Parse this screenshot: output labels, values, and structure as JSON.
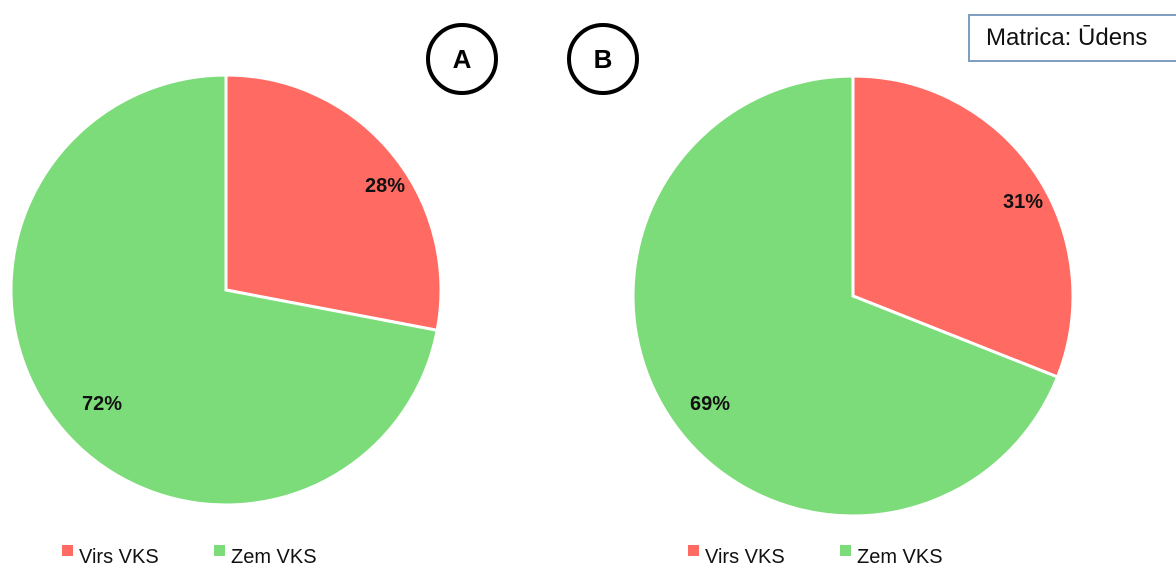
{
  "matrix_label": "Matrica: Ūdens",
  "colors": {
    "above": "#ff6b63",
    "below": "#7ddc7a",
    "box_border": "#7f9fbf"
  },
  "chart_data": [
    {
      "type": "pie",
      "panel": "A",
      "slices": [
        {
          "label": "Virs VKS",
          "value": 28,
          "display": "28%"
        },
        {
          "label": "Zem VKS",
          "value": 72,
          "display": "72%"
        }
      ],
      "legend": [
        "Virs VKS",
        "Zem VKS"
      ],
      "legend_position": "bottom"
    },
    {
      "type": "pie",
      "panel": "B",
      "slices": [
        {
          "label": "Virs VKS",
          "value": 31,
          "display": "31%"
        },
        {
          "label": "Zem VKS",
          "value": 69,
          "display": "69%"
        }
      ],
      "legend": [
        "Virs VKS",
        "Zem VKS"
      ],
      "legend_position": "bottom"
    }
  ]
}
